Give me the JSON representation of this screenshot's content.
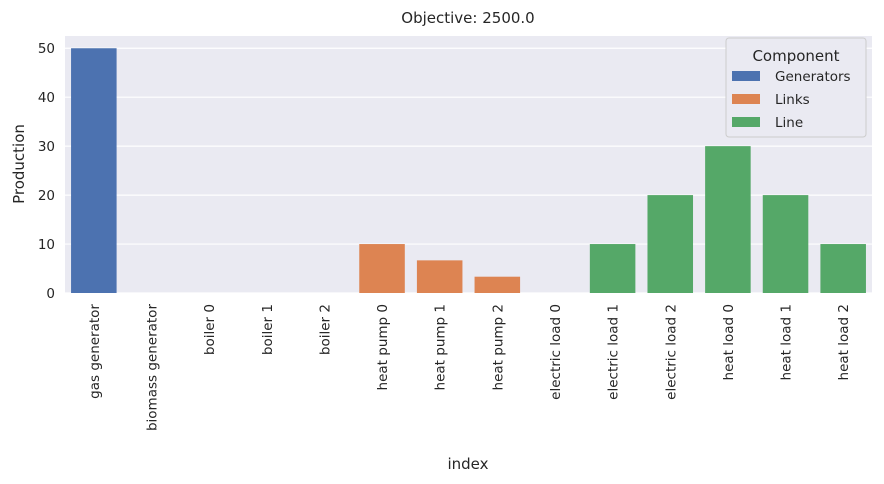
{
  "chart_data": {
    "type": "bar",
    "title": "Objective: 2500.0",
    "xlabel": "index",
    "ylabel": "Production",
    "ylim": [
      0,
      52.5
    ],
    "yticks": [
      0,
      10,
      20,
      30,
      40,
      50
    ],
    "grid": true,
    "legend_placement": "top-right",
    "legend_title": "Component",
    "categories": [
      "gas generator",
      "biomass generator",
      "boiler 0",
      "boiler 1",
      "boiler 2",
      "heat pump 0",
      "heat pump 1",
      "heat pump 2",
      "electric load 0",
      "electric load 1",
      "electric load 2",
      "heat load 0",
      "heat load 1",
      "heat load 2"
    ],
    "values": [
      50,
      0,
      0,
      0,
      0,
      10,
      6.67,
      3.33,
      0,
      10,
      20,
      30,
      20,
      10
    ],
    "components": [
      "Generators",
      "Generators",
      "Links",
      "Links",
      "Links",
      "Links",
      "Links",
      "Links",
      "Line",
      "Line",
      "Line",
      "Line",
      "Line",
      "Line"
    ],
    "series": [
      {
        "name": "Generators",
        "color": "#4c72b0"
      },
      {
        "name": "Links",
        "color": "#dd8452"
      },
      {
        "name": "Line",
        "color": "#55a868"
      }
    ],
    "plot_background": "#eaeaf2",
    "grid_color": "#ffffff"
  }
}
